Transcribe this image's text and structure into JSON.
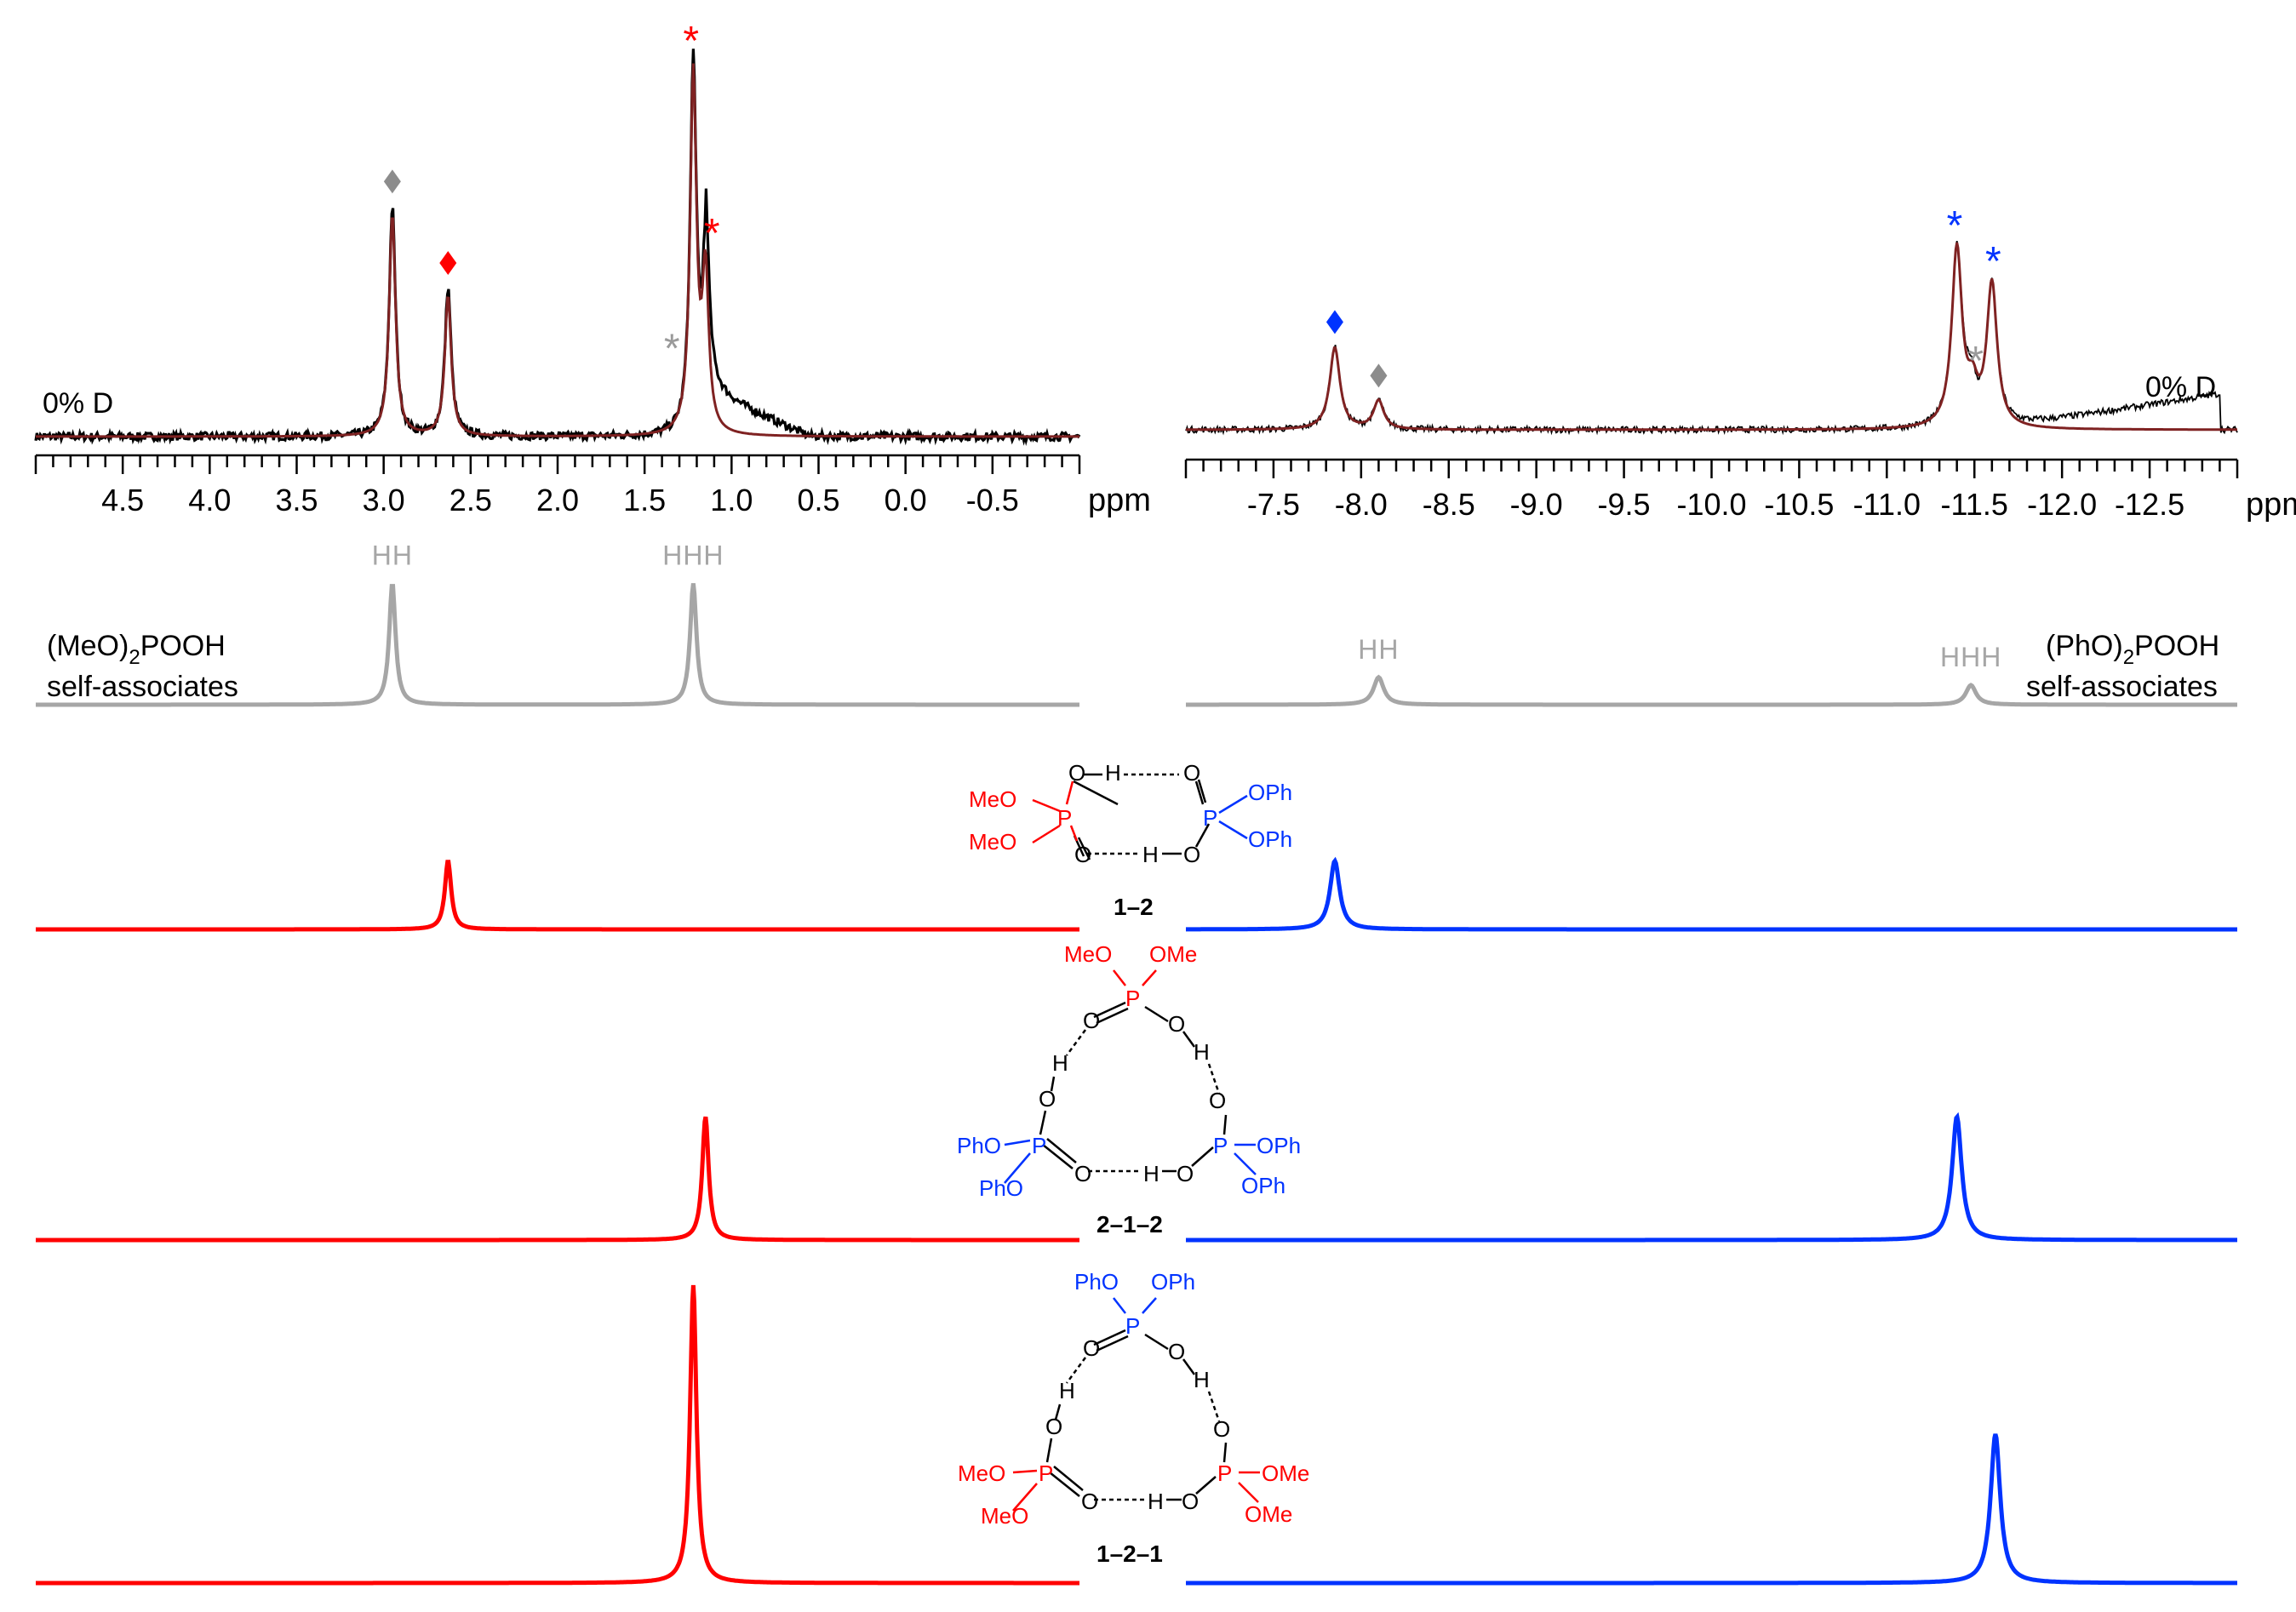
{
  "panels": [
    {
      "id": "left",
      "nucleus_axis": {
        "unit_label": "ppm",
        "range": [
          5.0,
          -1.0
        ],
        "ticks": [
          "4.5",
          "4.0",
          "3.5",
          "3.0",
          "2.5",
          "2.0",
          "1.5",
          "1.0",
          "0.5",
          "0.0",
          "-0.5"
        ],
        "tick_values": [
          4.5,
          4.0,
          3.5,
          3.0,
          2.5,
          2.0,
          1.5,
          1.0,
          0.5,
          0.0,
          -0.5
        ],
        "minor_step": 0.1
      },
      "experimental_label": "0% D",
      "self_assoc_label": [
        "(MeO)",
        "2",
        "POOH",
        "self-associates"
      ]
    },
    {
      "id": "right",
      "nucleus_axis": {
        "unit_label": "ppm",
        "range": [
          -7.0,
          -13.0
        ],
        "ticks": [
          "-7.5",
          "-8.0",
          "-8.5",
          "-9.0",
          "-9.5",
          "-10.0",
          "-10.5",
          "-11.0",
          "-11.5",
          "-12.0",
          "-12.5"
        ],
        "tick_values": [
          -7.5,
          -8.0,
          -8.5,
          -9.0,
          -9.5,
          -10.0,
          -10.5,
          -11.0,
          -11.5,
          -12.0,
          -12.5
        ],
        "minor_step": 0.1
      },
      "experimental_label": "0% D",
      "self_assoc_label": [
        "(PhO)",
        "2",
        "POOH",
        "self-associates"
      ]
    }
  ],
  "chart_data": [
    {
      "type": "line",
      "panel": "left",
      "row": "experimental",
      "xlabel": "ppm",
      "xlim": [
        5.0,
        -1.0
      ],
      "series": [
        {
          "role": "experimental",
          "color": "#000000",
          "peaks": [
            {
              "x": 2.95,
              "h": 0.62
            },
            {
              "x": 2.63,
              "h": 0.4
            },
            {
              "x": 1.22,
              "h": 1.0
            },
            {
              "x": 1.15,
              "h": 0.48
            }
          ],
          "broad": [
            {
              "from": 1.15,
              "to": 0.55,
              "level": 0.12
            }
          ]
        },
        {
          "role": "fit",
          "color": "#7f2222",
          "peaks": [
            {
              "x": 2.95,
              "h": 0.6
            },
            {
              "x": 2.63,
              "h": 0.38
            },
            {
              "x": 1.22,
              "h": 0.97
            },
            {
              "x": 1.15,
              "h": 0.42
            }
          ]
        }
      ],
      "markers": [
        {
          "symbol": "diamond",
          "x": 2.95,
          "color": "#8c8c8c"
        },
        {
          "symbol": "diamond",
          "x": 2.63,
          "color": "#ff0000"
        },
        {
          "symbol": "asterisk",
          "x": 1.22,
          "color": "#ff0000"
        },
        {
          "symbol": "asterisk",
          "x": 1.1,
          "color": "#ff0000"
        },
        {
          "symbol": "asterisk",
          "x": 1.33,
          "color": "#9a9a9a"
        }
      ]
    },
    {
      "type": "line",
      "panel": "right",
      "row": "experimental",
      "xlabel": "ppm",
      "xlim": [
        -7.0,
        -13.0
      ],
      "series": [
        {
          "role": "experimental",
          "color": "#000000",
          "peaks": [
            {
              "x": -7.85,
              "h": 0.46
            },
            {
              "x": -8.1,
              "h": 0.16
            },
            {
              "x": -11.4,
              "h": 1.0
            },
            {
              "x": -11.48,
              "h": 0.2
            },
            {
              "x": -11.6,
              "h": 0.8
            }
          ],
          "broad": [
            {
              "from": -11.6,
              "to": -12.9,
              "level": 0.2
            }
          ]
        },
        {
          "role": "fit",
          "color": "#7f2222",
          "peaks": [
            {
              "x": -7.85,
              "h": 0.46
            },
            {
              "x": -8.1,
              "h": 0.16
            },
            {
              "x": -11.4,
              "h": 1.0
            },
            {
              "x": -11.49,
              "h": 0.18
            },
            {
              "x": -11.6,
              "h": 0.8
            }
          ]
        }
      ],
      "markers": [
        {
          "symbol": "diamond",
          "x": -7.85,
          "color": "#0033ff"
        },
        {
          "symbol": "diamond",
          "x": -8.1,
          "color": "#8c8c8c"
        },
        {
          "symbol": "asterisk",
          "x": -11.4,
          "color": "#0033ff"
        },
        {
          "symbol": "asterisk",
          "x": -11.62,
          "color": "#0033ff"
        },
        {
          "symbol": "asterisk",
          "x": -11.52,
          "color": "#9a9a9a"
        }
      ]
    },
    {
      "type": "line",
      "panel": "left",
      "row": "self-associates",
      "color": "#a6a6a6",
      "xlim": [
        5.0,
        -1.0
      ],
      "peaks": [
        {
          "x": 2.95,
          "h": 0.62,
          "label": "HH"
        },
        {
          "x": 1.22,
          "h": 0.62,
          "label": "HHH"
        }
      ]
    },
    {
      "type": "line",
      "panel": "right",
      "row": "self-associates",
      "color": "#a6a6a6",
      "xlim": [
        -7.0,
        -13.0
      ],
      "peaks": [
        {
          "x": -8.1,
          "h": 0.14,
          "label": "HH"
        },
        {
          "x": -11.48,
          "h": 0.1,
          "label": "HHH"
        }
      ]
    },
    {
      "type": "line",
      "panel": "left",
      "row": "1-2",
      "color": "#ff0000",
      "xlim": [
        5.0,
        -1.0
      ],
      "peaks": [
        {
          "x": 2.63,
          "h": 0.7
        }
      ]
    },
    {
      "type": "line",
      "panel": "right",
      "row": "1-2",
      "color": "#0033ff",
      "xlim": [
        -7.0,
        -13.0
      ],
      "peaks": [
        {
          "x": -7.85,
          "h": 0.7
        }
      ]
    },
    {
      "type": "line",
      "panel": "left",
      "row": "2-1-2",
      "color": "#ff0000",
      "xlim": [
        5.0,
        -1.0
      ],
      "peaks": [
        {
          "x": 1.15,
          "h": 1.0
        }
      ]
    },
    {
      "type": "line",
      "panel": "right",
      "row": "2-1-2",
      "color": "#0033ff",
      "xlim": [
        -7.0,
        -13.0
      ],
      "peaks": [
        {
          "x": -11.4,
          "h": 1.0
        }
      ]
    },
    {
      "type": "line",
      "panel": "left",
      "row": "1-2-1",
      "color": "#ff0000",
      "xlim": [
        5.0,
        -1.0
      ],
      "peaks": [
        {
          "x": 1.22,
          "h": 1.0
        }
      ]
    },
    {
      "type": "line",
      "panel": "right",
      "row": "1-2-1",
      "color": "#0033ff",
      "xlim": [
        -7.0,
        -13.0
      ],
      "peaks": [
        {
          "x": -11.62,
          "h": 0.5
        }
      ]
    }
  ],
  "structures": [
    {
      "id": "1-2",
      "label": "1–2"
    },
    {
      "id": "2-1-2",
      "label": "2–1–2"
    },
    {
      "id": "1-2-1",
      "label": "1–2–1"
    }
  ],
  "chem_text": {
    "MeO": "MeO",
    "OMe": "OMe",
    "OPh": "OPh",
    "PhO": "PhO",
    "P": "P",
    "O": "O",
    "H": "H"
  },
  "colors": {
    "red": "#ff0000",
    "blue": "#0033ff",
    "gray": "#a6a6a6",
    "fit": "#7f2222",
    "black": "#000000"
  }
}
